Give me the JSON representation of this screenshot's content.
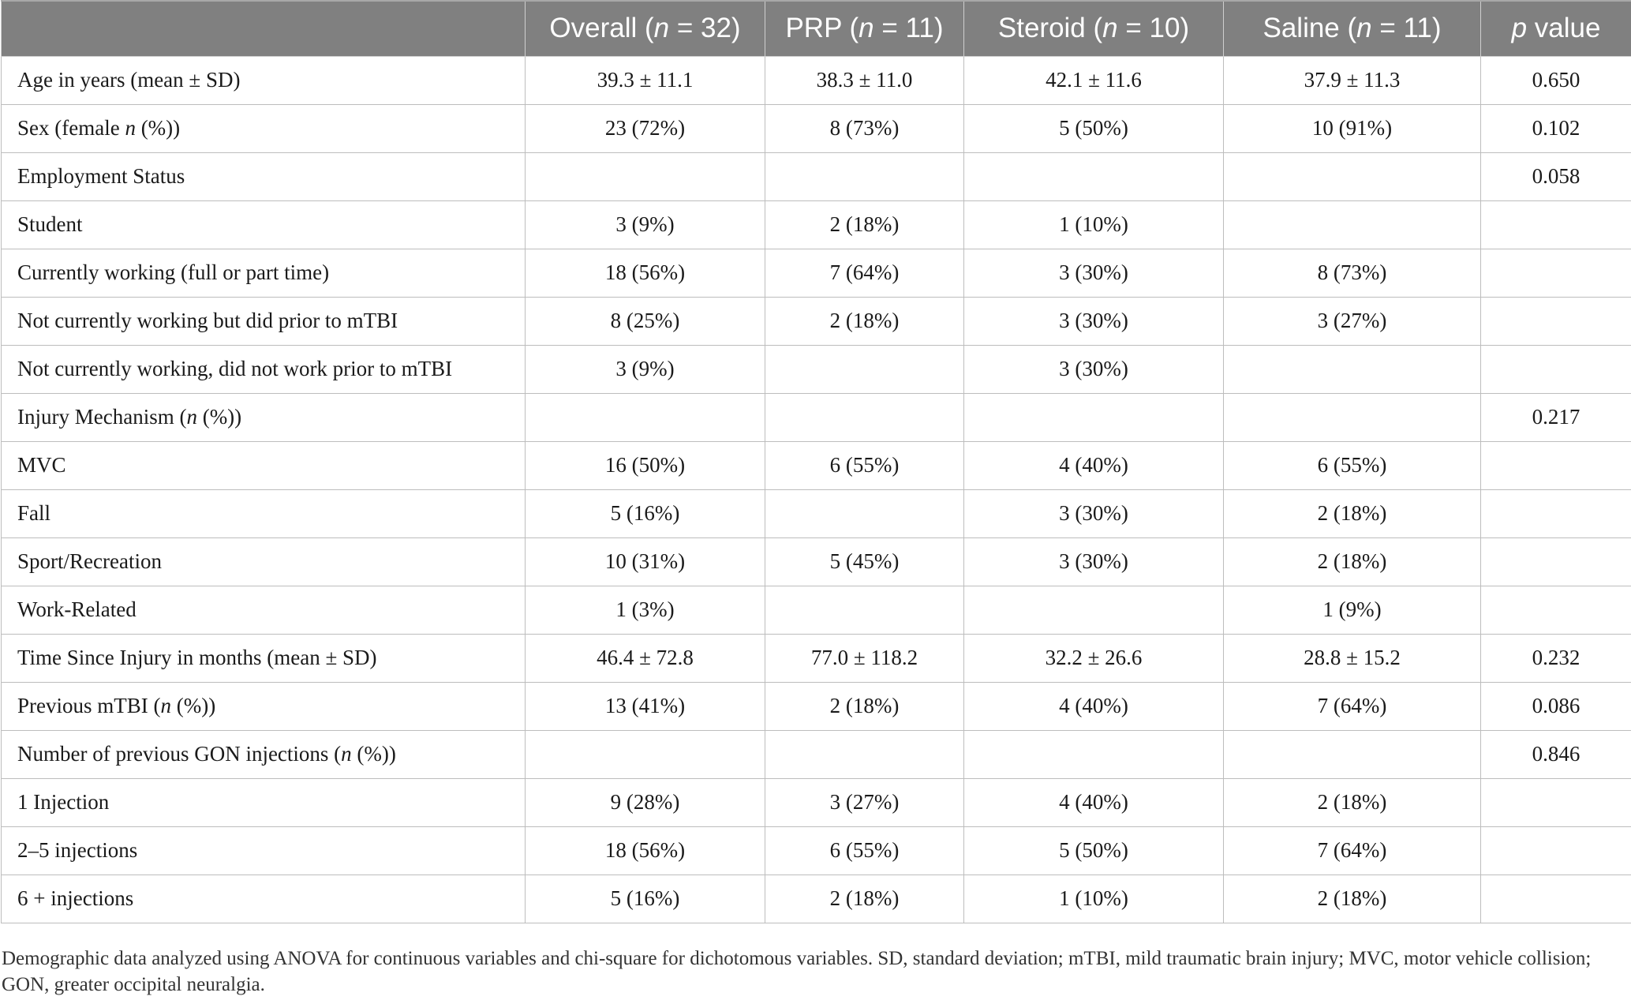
{
  "table": {
    "headers": [
      {
        "pre": "",
        "it": "",
        "post": ""
      },
      {
        "pre": "Overall (",
        "it": "n",
        "post": " = 32)"
      },
      {
        "pre": "PRP (",
        "it": "n",
        "post": " = 11)"
      },
      {
        "pre": "Steroid (",
        "it": "n",
        "post": " = 10)"
      },
      {
        "pre": "Saline (",
        "it": "n",
        "post": " = 11)"
      },
      {
        "pre": "",
        "it": "p",
        "post": " value"
      }
    ],
    "rows": [
      {
        "label": {
          "pre": "Age in years (mean ± SD)",
          "it": "",
          "post": ""
        },
        "cells": [
          "39.3 ± 11.1",
          "38.3 ± 11.0",
          "42.1 ± 11.6",
          "37.9 ± 11.3",
          "0.650"
        ]
      },
      {
        "label": {
          "pre": "Sex (female ",
          "it": "n",
          "post": " (%))"
        },
        "cells": [
          "23 (72%)",
          "8 (73%)",
          "5 (50%)",
          "10 (91%)",
          "0.102"
        ]
      },
      {
        "label": {
          "pre": "Employment Status",
          "it": "",
          "post": ""
        },
        "cells": [
          "",
          "",
          "",
          "",
          "0.058"
        ]
      },
      {
        "label": {
          "pre": "Student",
          "it": "",
          "post": ""
        },
        "cells": [
          "3 (9%)",
          "2 (18%)",
          "1 (10%)",
          "",
          ""
        ]
      },
      {
        "label": {
          "pre": "Currently working (full or part time)",
          "it": "",
          "post": ""
        },
        "cells": [
          "18 (56%)",
          "7 (64%)",
          "3 (30%)",
          "8 (73%)",
          ""
        ]
      },
      {
        "label": {
          "pre": "Not currently working but did prior to mTBI",
          "it": "",
          "post": ""
        },
        "cells": [
          "8 (25%)",
          "2 (18%)",
          "3 (30%)",
          "3 (27%)",
          ""
        ]
      },
      {
        "label": {
          "pre": "Not currently working, did not work prior to mTBI",
          "it": "",
          "post": ""
        },
        "cells": [
          "3 (9%)",
          "",
          "3 (30%)",
          "",
          ""
        ]
      },
      {
        "label": {
          "pre": "Injury Mechanism (",
          "it": "n",
          "post": " (%))"
        },
        "cells": [
          "",
          "",
          "",
          "",
          "0.217"
        ]
      },
      {
        "label": {
          "pre": "MVC",
          "it": "",
          "post": ""
        },
        "cells": [
          "16 (50%)",
          "6 (55%)",
          "4 (40%)",
          "6 (55%)",
          ""
        ]
      },
      {
        "label": {
          "pre": "Fall",
          "it": "",
          "post": ""
        },
        "cells": [
          "5 (16%)",
          "",
          "3 (30%)",
          "2 (18%)",
          ""
        ]
      },
      {
        "label": {
          "pre": "Sport/Recreation",
          "it": "",
          "post": ""
        },
        "cells": [
          "10 (31%)",
          "5 (45%)",
          "3 (30%)",
          "2 (18%)",
          ""
        ]
      },
      {
        "label": {
          "pre": "Work-Related",
          "it": "",
          "post": ""
        },
        "cells": [
          "1 (3%)",
          "",
          "",
          "1 (9%)",
          ""
        ]
      },
      {
        "label": {
          "pre": "Time Since Injury in months (mean ± SD)",
          "it": "",
          "post": ""
        },
        "cells": [
          "46.4 ± 72.8",
          "77.0 ± 118.2",
          "32.2 ± 26.6",
          "28.8 ± 15.2",
          "0.232"
        ]
      },
      {
        "label": {
          "pre": "Previous mTBI (",
          "it": "n",
          "post": " (%))"
        },
        "cells": [
          "13 (41%)",
          "2 (18%)",
          "4 (40%)",
          "7 (64%)",
          "0.086"
        ]
      },
      {
        "label": {
          "pre": "Number of previous GON injections (",
          "it": "n",
          "post": " (%))"
        },
        "cells": [
          "",
          "",
          "",
          "",
          "0.846"
        ]
      },
      {
        "label": {
          "pre": "1 Injection",
          "it": "",
          "post": ""
        },
        "cells": [
          "9 (28%)",
          "3 (27%)",
          "4 (40%)",
          "2 (18%)",
          ""
        ]
      },
      {
        "label": {
          "pre": "2–5 injections",
          "it": "",
          "post": ""
        },
        "cells": [
          "18 (56%)",
          "6 (55%)",
          "5 (50%)",
          "7 (64%)",
          ""
        ]
      },
      {
        "label": {
          "pre": "6 + injections",
          "it": "",
          "post": ""
        },
        "cells": [
          "5 (16%)",
          "2 (18%)",
          "1 (10%)",
          "2 (18%)",
          ""
        ]
      }
    ]
  },
  "footnote": "Demographic data analyzed using ANOVA for continuous variables and chi-square for dichotomous variables. SD, standard deviation; mTBI, mild traumatic brain injury; MVC, motor vehicle collision; GON, greater occipital neuralgia."
}
